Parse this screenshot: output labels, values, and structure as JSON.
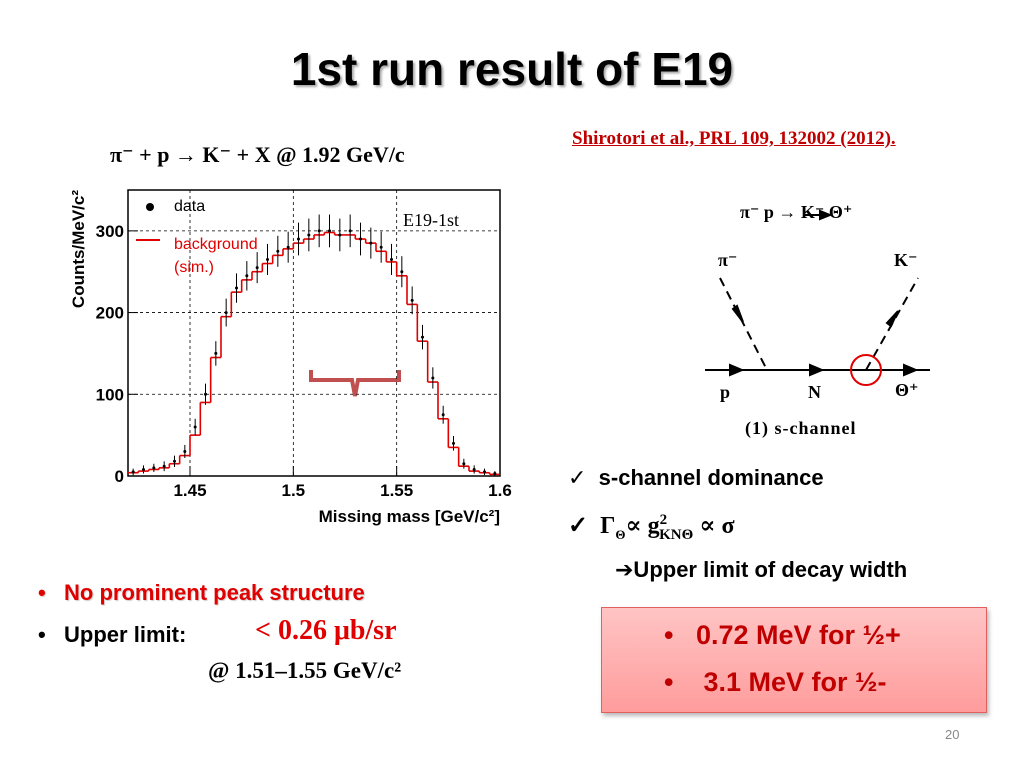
{
  "title": "1st run result of E19",
  "reaction": "π⁻ + p → K⁻ + X @ 1.92 GeV/c",
  "reference": "Shirotori et al., PRL 109, 132002 (2012).",
  "chart_data": {
    "type": "errorbar",
    "xlabel": "Missing mass [GeV/c²]",
    "ylabel": "Counts/MeV/c²",
    "annotation": "E19-1st",
    "x": [
      1.4225,
      1.4275,
      1.4325,
      1.4375,
      1.4425,
      1.4475,
      1.4525,
      1.4575,
      1.4625,
      1.4675,
      1.4725,
      1.4775,
      1.4825,
      1.4875,
      1.4925,
      1.4975,
      1.5025,
      1.5075,
      1.5125,
      1.5175,
      1.5225,
      1.5275,
      1.5325,
      1.5375,
      1.5425,
      1.5475,
      1.5525,
      1.5575,
      1.5625,
      1.5675,
      1.5725,
      1.5775,
      1.5825,
      1.5875,
      1.5925,
      1.5975
    ],
    "series": [
      {
        "name": "data",
        "color": "#000000",
        "values": [
          5,
          8,
          10,
          12,
          18,
          30,
          60,
          100,
          150,
          200,
          230,
          245,
          255,
          265,
          275,
          280,
          290,
          295,
          300,
          300,
          295,
          300,
          290,
          285,
          280,
          265,
          250,
          215,
          170,
          120,
          75,
          40,
          15,
          8,
          5,
          3
        ],
        "errors": [
          4,
          5,
          5,
          6,
          7,
          8,
          10,
          13,
          15,
          17,
          18,
          18,
          19,
          19,
          19,
          19,
          20,
          20,
          20,
          20,
          20,
          20,
          20,
          19,
          19,
          19,
          19,
          17,
          15,
          13,
          11,
          9,
          6,
          5,
          4,
          3
        ]
      },
      {
        "name": "background (sim.)",
        "color": "#e00000",
        "values": [
          4,
          6,
          8,
          10,
          15,
          25,
          50,
          90,
          145,
          195,
          225,
          240,
          250,
          260,
          270,
          278,
          285,
          290,
          295,
          298,
          295,
          295,
          290,
          285,
          275,
          262,
          245,
          210,
          165,
          115,
          70,
          35,
          12,
          6,
          4,
          2
        ]
      }
    ],
    "xlim": [
      1.42,
      1.6
    ],
    "xticks": [
      1.45,
      1.5,
      1.55,
      1.6
    ],
    "ylim": [
      0,
      350
    ],
    "yticks": [
      0,
      100,
      200,
      300
    ],
    "grid": true
  },
  "diagram": {
    "header": "π⁻ p → K⁻ Θ⁺",
    "in_pion": "π⁻",
    "out_kaon": "K⁻",
    "in_proton": "p",
    "propagator": "N",
    "out_theta": "Θ⁺",
    "caption": "(1) s-channel"
  },
  "right_bullets": {
    "first": "s-channel dominance",
    "formula": {
      "gamma": "Γ",
      "gamma_sub": "Θ",
      "prop": "∝ g",
      "g_sup": "2",
      "g_sub": "KNΘ",
      "tail": " ∝ σ"
    },
    "arrow_line": "➔Upper limit of decay width"
  },
  "left_bullets": {
    "first": "No prominent peak structure",
    "second_label": "Upper limit:",
    "second_value": "< 0.26 μb/sr",
    "range": "@ 1.51–1.55 GeV/c²"
  },
  "result_box": {
    "line1": "0.72 MeV for ½+",
    "line2": "3.1 MeV for ½-"
  },
  "page_number": "20"
}
